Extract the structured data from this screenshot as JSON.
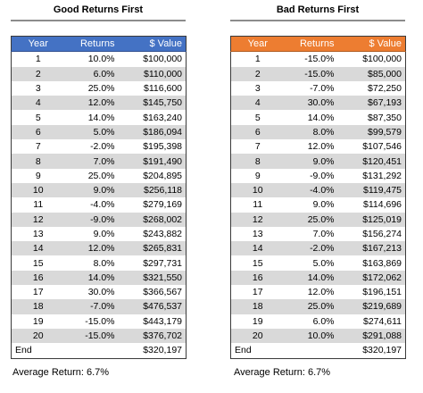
{
  "left": {
    "title": "Good Returns First",
    "headers": {
      "year": "Year",
      "returns": "Returns",
      "value": "$ Value"
    },
    "rows": [
      {
        "year": "1",
        "ret": "10.0%",
        "val": "$100,000"
      },
      {
        "year": "2",
        "ret": "6.0%",
        "val": "$110,000"
      },
      {
        "year": "3",
        "ret": "25.0%",
        "val": "$116,600"
      },
      {
        "year": "4",
        "ret": "12.0%",
        "val": "$145,750"
      },
      {
        "year": "5",
        "ret": "14.0%",
        "val": "$163,240"
      },
      {
        "year": "6",
        "ret": "5.0%",
        "val": "$186,094"
      },
      {
        "year": "7",
        "ret": "-2.0%",
        "val": "$195,398"
      },
      {
        "year": "8",
        "ret": "7.0%",
        "val": "$191,490"
      },
      {
        "year": "9",
        "ret": "25.0%",
        "val": "$204,895"
      },
      {
        "year": "10",
        "ret": "9.0%",
        "val": "$256,118"
      },
      {
        "year": "11",
        "ret": "-4.0%",
        "val": "$279,169"
      },
      {
        "year": "12",
        "ret": "-9.0%",
        "val": "$268,002"
      },
      {
        "year": "13",
        "ret": "9.0%",
        "val": "$243,882"
      },
      {
        "year": "14",
        "ret": "12.0%",
        "val": "$265,831"
      },
      {
        "year": "15",
        "ret": "8.0%",
        "val": "$297,731"
      },
      {
        "year": "16",
        "ret": "14.0%",
        "val": "$321,550"
      },
      {
        "year": "17",
        "ret": "30.0%",
        "val": "$366,567"
      },
      {
        "year": "18",
        "ret": "-7.0%",
        "val": "$476,537"
      },
      {
        "year": "19",
        "ret": "-15.0%",
        "val": "$443,179"
      },
      {
        "year": "20",
        "ret": "-15.0%",
        "val": "$376,702"
      }
    ],
    "end": {
      "label": "End",
      "val": "$320,197"
    },
    "average": "Average Return: 6.7%"
  },
  "right": {
    "title": "Bad Returns First",
    "headers": {
      "year": "Year",
      "returns": "Returns",
      "value": "$ Value"
    },
    "rows": [
      {
        "year": "1",
        "ret": "-15.0%",
        "val": "$100,000"
      },
      {
        "year": "2",
        "ret": "-15.0%",
        "val": "$85,000"
      },
      {
        "year": "3",
        "ret": "-7.0%",
        "val": "$72,250"
      },
      {
        "year": "4",
        "ret": "30.0%",
        "val": "$67,193"
      },
      {
        "year": "5",
        "ret": "14.0%",
        "val": "$87,350"
      },
      {
        "year": "6",
        "ret": "8.0%",
        "val": "$99,579"
      },
      {
        "year": "7",
        "ret": "12.0%",
        "val": "$107,546"
      },
      {
        "year": "8",
        "ret": "9.0%",
        "val": "$120,451"
      },
      {
        "year": "9",
        "ret": "-9.0%",
        "val": "$131,292"
      },
      {
        "year": "10",
        "ret": "-4.0%",
        "val": "$119,475"
      },
      {
        "year": "11",
        "ret": "9.0%",
        "val": "$114,696"
      },
      {
        "year": "12",
        "ret": "25.0%",
        "val": "$125,019"
      },
      {
        "year": "13",
        "ret": "7.0%",
        "val": "$156,274"
      },
      {
        "year": "14",
        "ret": "-2.0%",
        "val": "$167,213"
      },
      {
        "year": "15",
        "ret": "5.0%",
        "val": "$163,869"
      },
      {
        "year": "16",
        "ret": "14.0%",
        "val": "$172,062"
      },
      {
        "year": "17",
        "ret": "12.0%",
        "val": "$196,151"
      },
      {
        "year": "18",
        "ret": "25.0%",
        "val": "$219,689"
      },
      {
        "year": "19",
        "ret": "6.0%",
        "val": "$274,611"
      },
      {
        "year": "20",
        "ret": "10.0%",
        "val": "$291,088"
      }
    ],
    "end": {
      "label": "End",
      "val": "$320,197"
    },
    "average": "Average Return: 6.7%"
  },
  "colors": {
    "left_header": "#4472c4",
    "right_header": "#ed7d31",
    "stripe": "#d9d9d9"
  }
}
